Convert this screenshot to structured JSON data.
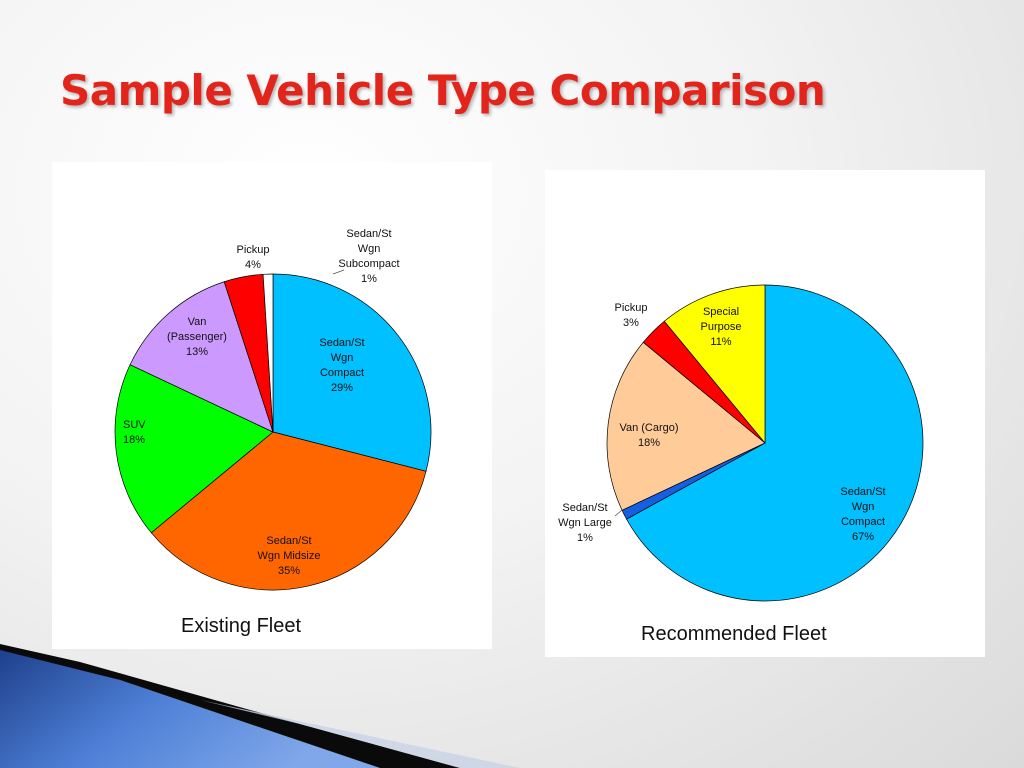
{
  "slide": {
    "title": "Sample Vehicle Type Comparison"
  },
  "chart_data": [
    {
      "type": "pie",
      "caption": "Existing Fleet",
      "slices": [
        {
          "label": [
            "Sedan/St",
            "Wgn",
            "Compact"
          ],
          "value": 29,
          "display": "29%",
          "color": "#00c0ff"
        },
        {
          "label": [
            "Sedan/St",
            "Wgn Midsize"
          ],
          "value": 35,
          "display": "35%",
          "color": "#ff6600"
        },
        {
          "label": [
            "SUV"
          ],
          "value": 18,
          "display": "18%",
          "color": "#00ff00"
        },
        {
          "label": [
            "Van",
            "(Passenger)"
          ],
          "value": 13,
          "display": "13%",
          "color": "#cc99ff"
        },
        {
          "label": [
            "Pickup"
          ],
          "value": 4,
          "display": "4%",
          "color": "#ff0000"
        },
        {
          "label": [
            "Sedan/St",
            "Wgn",
            "Subcompact"
          ],
          "value": 1,
          "display": "1%",
          "color": "#ffffff"
        }
      ]
    },
    {
      "type": "pie",
      "caption": "Recommended Fleet",
      "slices": [
        {
          "label": [
            "Sedan/St",
            "Wgn",
            "Compact"
          ],
          "value": 67,
          "display": "67%",
          "color": "#00c0ff"
        },
        {
          "label": [
            "Sedan/St",
            "Wgn Large"
          ],
          "value": 1,
          "display": "1%",
          "color": "#1560e0"
        },
        {
          "label": [
            "Van (Cargo)"
          ],
          "value": 18,
          "display": "18%",
          "color": "#ffcc99"
        },
        {
          "label": [
            "Pickup"
          ],
          "value": 3,
          "display": "3%",
          "color": "#ff0000"
        },
        {
          "label": [
            "Special",
            "Purpose"
          ],
          "value": 11,
          "display": "11%",
          "color": "#ffff00"
        }
      ]
    }
  ]
}
